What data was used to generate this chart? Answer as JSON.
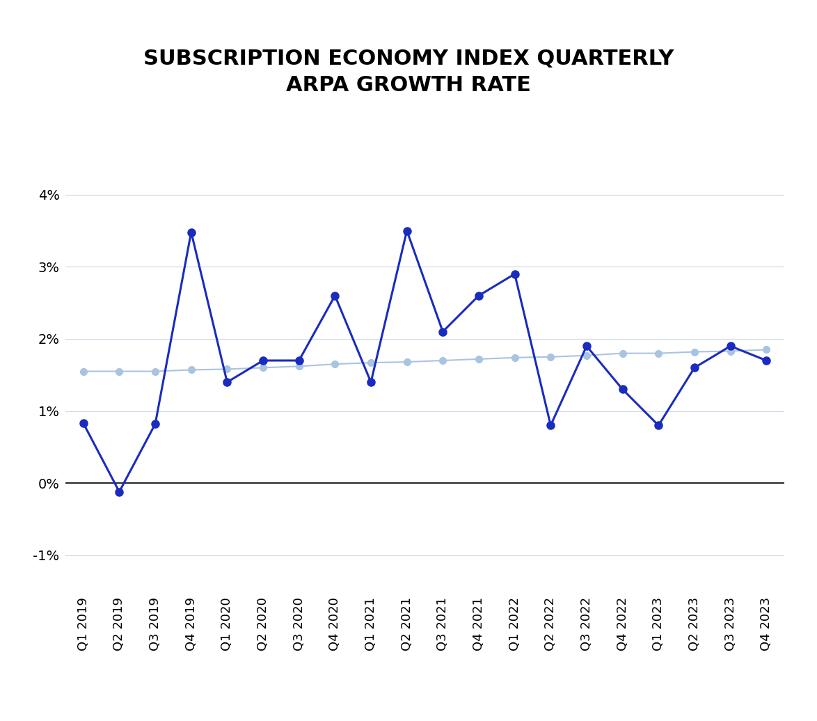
{
  "title": "SUBSCRIPTION ECONOMY INDEX QUARTERLY\nARPA GROWTH RATE",
  "categories": [
    "Q1 2019",
    "Q2 2019",
    "Q3 2019",
    "Q4 2019",
    "Q1 2020",
    "Q2 2020",
    "Q3 2020",
    "Q4 2020",
    "Q1 2021",
    "Q2 2021",
    "Q3 2021",
    "Q4 2021",
    "Q1 2022",
    "Q2 2022",
    "Q3 2022",
    "Q4 2022",
    "Q1 2023",
    "Q2 2023",
    "Q3 2023",
    "Q4 2023"
  ],
  "main_values": [
    0.0083,
    -0.0012,
    0.0082,
    0.0348,
    0.014,
    0.017,
    0.017,
    0.026,
    0.014,
    0.035,
    0.021,
    0.026,
    0.029,
    0.008,
    0.019,
    0.013,
    0.008,
    0.016,
    0.019,
    0.017
  ],
  "trend_values": [
    0.0155,
    0.0155,
    0.0155,
    0.0157,
    0.0158,
    0.016,
    0.0162,
    0.0165,
    0.0167,
    0.0168,
    0.017,
    0.0172,
    0.0174,
    0.0175,
    0.0177,
    0.018,
    0.018,
    0.0182,
    0.0183,
    0.0185
  ],
  "main_color": "#1a2bbf",
  "trend_color": "#a8c4e0",
  "line_width": 2.2,
  "marker_size": 8,
  "trend_marker_size": 7,
  "ylim": [
    -0.015,
    0.047
  ],
  "yticks": [
    -0.01,
    0.0,
    0.01,
    0.02,
    0.03,
    0.04
  ],
  "ytick_labels": [
    "-1%",
    "0%",
    "1%",
    "2%",
    "3%",
    "4%"
  ],
  "title_fontsize": 22,
  "tick_fontsize": 14,
  "background_color": "#ffffff",
  "grid_color": "#ccd9e8"
}
